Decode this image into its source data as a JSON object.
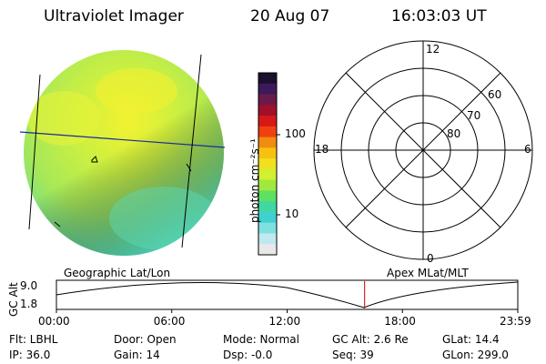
{
  "header": {
    "instrument": "Ultraviolet Imager",
    "date": "20 Aug 07",
    "time": "16:03:03 UT"
  },
  "colorbar": {
    "unit": "photon cm⁻²s⁻¹",
    "tick_100": "100",
    "tick_10": "10",
    "colors": [
      "#1a0f2e",
      "#3b1a5a",
      "#6a1a4a",
      "#a0102a",
      "#d81818",
      "#f04010",
      "#f08c10",
      "#f8c010",
      "#f0e020",
      "#d0f030",
      "#a0e840",
      "#60e060",
      "#40d8a0",
      "#40d0d0",
      "#80e0e0",
      "#c0e8f0",
      "#e8e8e8"
    ]
  },
  "polar": {
    "mlt_top": "12",
    "mlt_left": "18",
    "mlt_right": "6",
    "mlt_bottom": "0",
    "lat_60": "60",
    "lat_70": "70",
    "lat_80": "80"
  },
  "orbit": {
    "left_label": "Geographic Lat/Lon",
    "right_label": "Apex MLat/MLT",
    "axis_label": "GC Alt",
    "y_max": "9.0",
    "y_min": "1.8",
    "x_ticks": [
      "00:00",
      "06:00",
      "12:00",
      "18:00",
      "23:59"
    ],
    "current_time_fraction": 0.668,
    "current_marker_color": "#cc0000"
  },
  "info": {
    "filter": "Flt: LBHL",
    "ip": "IP: 36.0",
    "door": "Door: Open",
    "gain": "Gain: 14",
    "mode": "Mode: Normal",
    "dsp": "Dsp:    -0.0",
    "gc_alt": "GC Alt: 2.6 Re",
    "seq": "Seq: 39",
    "glat": "GLat:   14.4",
    "glon": "GLon: 299.0"
  }
}
